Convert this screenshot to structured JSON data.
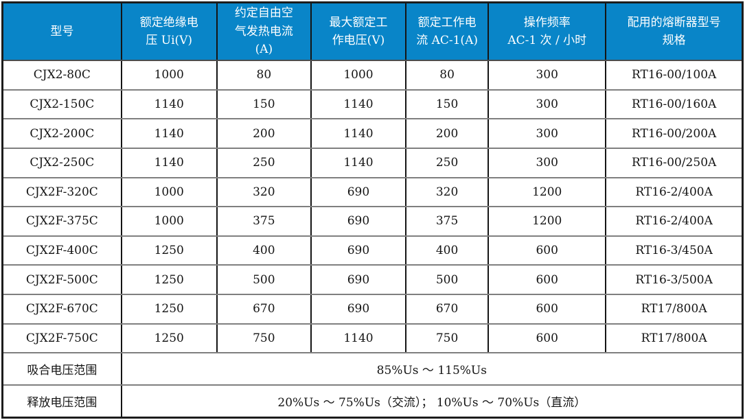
{
  "table": {
    "columns": [
      "型号",
      "额定绝缘电\n压 Ui(V)",
      "约定自由空\n气发热电流\n(A)",
      "最大额定工\n作电压(V)",
      "额定工作电\n流 AC-1(A)",
      "操作频率\nAC-1 次 / 小时",
      "配用的熔断器型号\n规格"
    ],
    "rows": [
      [
        "CJX2-80C",
        "1000",
        "80",
        "1000",
        "80",
        "300",
        "RT16-00/100A"
      ],
      [
        "CJX2-150C",
        "1140",
        "150",
        "1140",
        "150",
        "300",
        "RT16-00/160A"
      ],
      [
        "CJX2-200C",
        "1140",
        "200",
        "1140",
        "200",
        "300",
        "RT16-00/200A"
      ],
      [
        "CJX2-250C",
        "1140",
        "250",
        "1140",
        "250",
        "300",
        "RT16-00/250A"
      ],
      [
        "CJX2F-320C",
        "1000",
        "320",
        "690",
        "320",
        "1200",
        "RT16-2/400A"
      ],
      [
        "CJX2F-375C",
        "1000",
        "375",
        "690",
        "375",
        "1200",
        "RT16-2/400A"
      ],
      [
        "CJX2F-400C",
        "1250",
        "400",
        "690",
        "400",
        "600",
        "RT16-3/450A"
      ],
      [
        "CJX2F-500C",
        "1250",
        "500",
        "690",
        "500",
        "600",
        "RT16-3/500A"
      ],
      [
        "CJX2F-670C",
        "1250",
        "670",
        "690",
        "670",
        "600",
        "RT17/800A"
      ],
      [
        "CJX2F-750C",
        "1250",
        "750",
        "1140",
        "750",
        "600",
        "RT17/800A"
      ]
    ],
    "footer_rows": [
      {
        "label": "吸合电压范围",
        "value": "85%Us ～ 115%Us"
      },
      {
        "label": "释放电压范围",
        "value": "20%Us ～ 75%Us（交流）； 10%Us ～ 70%Us（直流）"
      }
    ],
    "colors": {
      "header_bg": "#0985C8",
      "header_text": "#FFFFFF",
      "row_border": "#7F7F7F",
      "column_border": "#141414",
      "body_text": "#141414"
    }
  }
}
